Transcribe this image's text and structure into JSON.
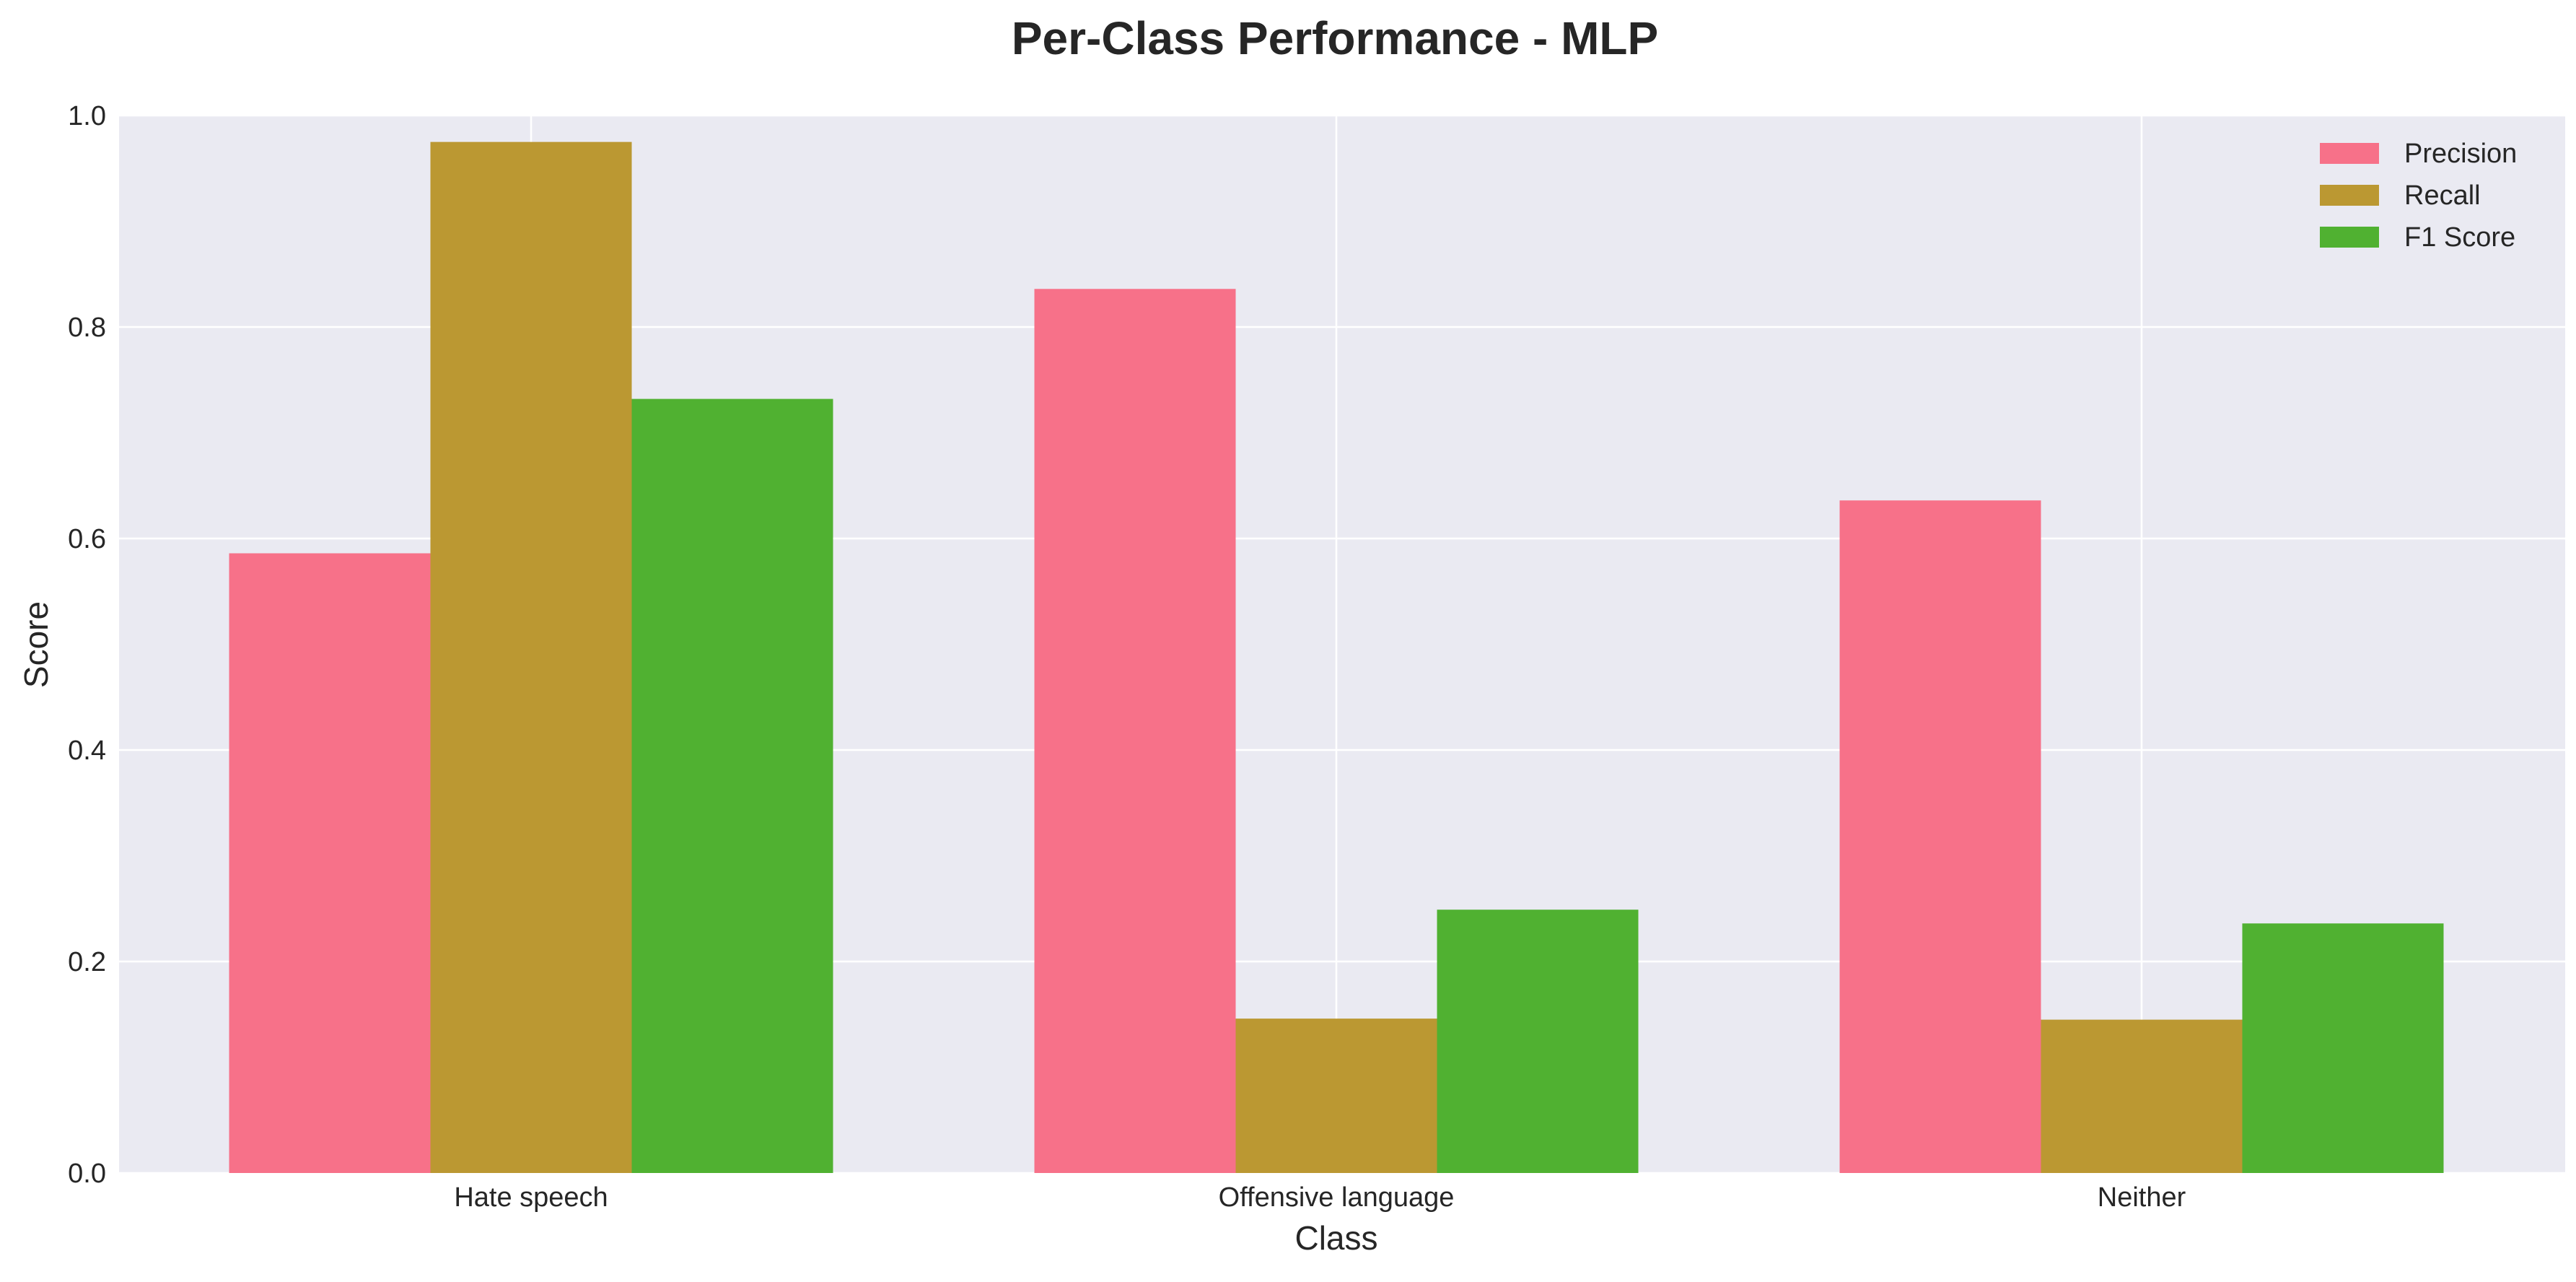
{
  "chart_data": {
    "type": "bar",
    "title": "Per-Class Performance - MLP",
    "xlabel": "Class",
    "ylabel": "Score",
    "categories": [
      "Hate speech",
      "Offensive language",
      "Neither"
    ],
    "series": [
      {
        "name": "Precision",
        "color": "#f77189",
        "values": [
          0.586,
          0.836,
          0.636
        ]
      },
      {
        "name": "Recall",
        "color": "#bb9832",
        "values": [
          0.975,
          0.146,
          0.145
        ]
      },
      {
        "name": "F1 Score",
        "color": "#50b131",
        "values": [
          0.732,
          0.249,
          0.236
        ]
      }
    ],
    "ylim": [
      0,
      1.0
    ],
    "yticks": [
      "0.0",
      "0.2",
      "0.4",
      "0.6",
      "0.8",
      "1.0"
    ],
    "grid": true,
    "legend_position": "top-right",
    "plot_background": "#eaeaf2"
  }
}
